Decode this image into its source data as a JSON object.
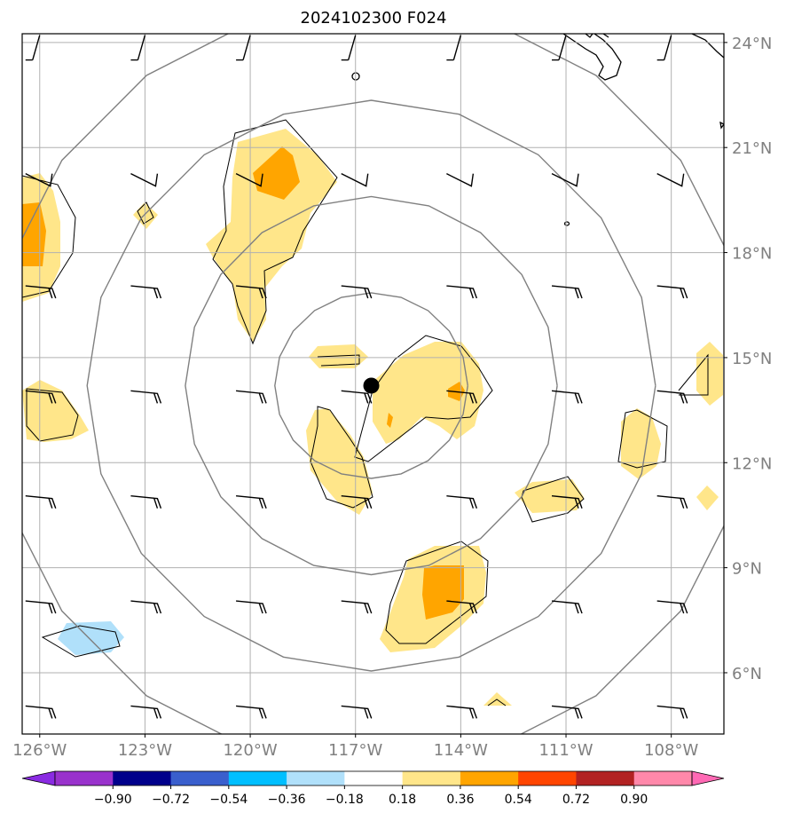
{
  "title": "2024102300 F024",
  "map": {
    "lon_range": [
      -126.5,
      -106.5
    ],
    "lat_range": [
      4.25,
      24.25
    ],
    "lon_ticks": [
      {
        "value": -126,
        "label": "126°W"
      },
      {
        "value": -123,
        "label": "123°W"
      },
      {
        "value": -120,
        "label": "120°W"
      },
      {
        "value": -117,
        "label": "117°W"
      },
      {
        "value": -114,
        "label": "114°W"
      },
      {
        "value": -111,
        "label": "111°W"
      },
      {
        "value": -108,
        "label": "108°W"
      }
    ],
    "lat_ticks": [
      {
        "value": 24,
        "label": "24°N"
      },
      {
        "value": 21,
        "label": "21°N"
      },
      {
        "value": 18,
        "label": "18°N"
      },
      {
        "value": 15,
        "label": "15°N"
      },
      {
        "value": 12,
        "label": "12°N"
      },
      {
        "value": 9,
        "label": "9°N"
      },
      {
        "value": 6,
        "label": "6°N"
      }
    ],
    "storm_center": {
      "lon": -116.55,
      "lat": 14.2
    },
    "range_rings": [
      {
        "rx_deg": 2.75,
        "ry_deg": 2.65
      },
      {
        "rx_deg": 5.3,
        "ry_deg": 5.4
      },
      {
        "rx_deg": 8.1,
        "ry_deg": 8.15
      },
      {
        "rx_deg": 10.9,
        "ry_deg": 10.95
      }
    ],
    "barb_lons": [
      -126,
      -123,
      -120,
      -117,
      -114,
      -111,
      -108
    ],
    "barb_lats": [
      23.5,
      20,
      17,
      14,
      11,
      8,
      5
    ]
  },
  "colorbar": {
    "colors": [
      "#8a2be2",
      "#9932cc",
      "#00008b",
      "#3a5fcd",
      "#00bfff",
      "#b0e0fa",
      "#ffffff",
      "#ffe68a",
      "#ffa500",
      "#ff4500",
      "#b22222",
      "#ff88aa",
      "#ff69b4"
    ],
    "tick_labels": [
      "−0.90",
      "−0.72",
      "−0.54",
      "−0.36",
      "−0.18",
      "0.18",
      "0.36",
      "0.54",
      "0.72",
      "0.90"
    ]
  }
}
